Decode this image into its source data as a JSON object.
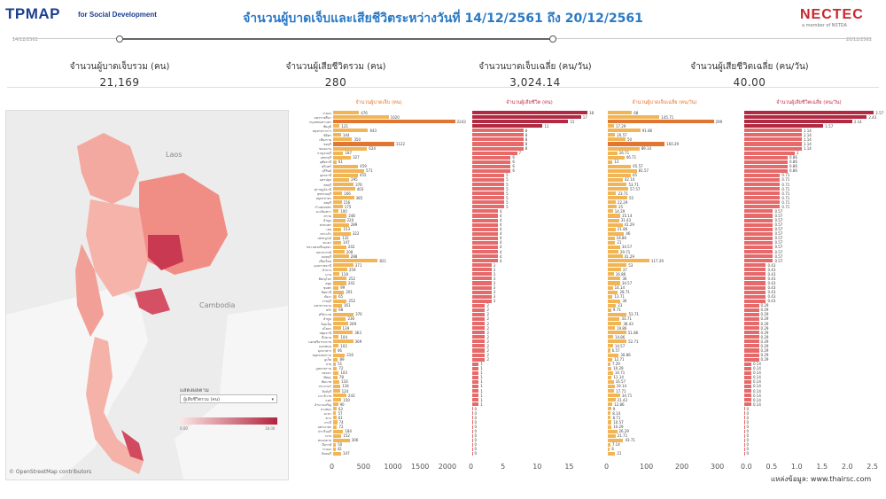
{
  "header": {
    "logo_text": "TPMAP",
    "logo_sub": "for Social Development",
    "title": "จำนวนผู้บาดเจ็บและเสียชีวิตระหว่างวันที่ 14/12/2561 ถึง 20/12/2561",
    "partner": "NECTEC",
    "partner_sub": "a member of NSTDA"
  },
  "date_slider": {
    "start_label": "14/12/2561",
    "end_label": "20/12/2561",
    "range_start": 0.25,
    "range_end": 0.66
  },
  "kpis": [
    {
      "label": "จำนวนผู้บาดเจ็บรวม (คน)",
      "value": "21,169"
    },
    {
      "label": "จำนวนผู้เสียชีวิตรวม (คน)",
      "value": "280"
    },
    {
      "label": "จำนวนบาดเจ็บเฉลี่ย (คน/วัน)",
      "value": "3,024.14"
    },
    {
      "label": "จำนวนผู้เสียชีวิตเฉลี่ย (คน/วัน)",
      "value": "40.00"
    }
  ],
  "map": {
    "labels": {
      "laos": "Laos",
      "cambodia": "Cambodia"
    },
    "attribution": "© OpenStreetMap contributors",
    "legend_title": "แสดงผลตาม",
    "legend_select": "ผู้เสียชีวิตรวม (คน)",
    "legend_min": "0.00",
    "legend_max": "18.00"
  },
  "colors": {
    "orange_bar": "#f2b555",
    "orange_dark": "#e0762f",
    "red_bar": "#e66a6a",
    "red_dark": "#b22a42"
  },
  "panels": [
    {
      "title": "จำนวนผู้บาดเจ็บ (คน)",
      "axis": [
        "0",
        "500",
        "1000",
        "1500",
        "2000"
      ]
    },
    {
      "title": "จำนวนผู้เสียชีวิต (คน)",
      "axis": [
        "0",
        "5",
        "10",
        "15"
      ]
    },
    {
      "title": "จำนวนผู้บาดเจ็บเฉลี่ย (คน/วัน)",
      "axis": [
        "0",
        "100",
        "200",
        "300"
      ]
    },
    {
      "title": "จำนวนผู้เสียชีวิตเฉลี่ย (คน/วัน)",
      "axis": [
        "0.0",
        "0.5",
        "1.0",
        "1.5",
        "2.0",
        "2.5"
      ]
    }
  ],
  "chart_data": {
    "type": "bar",
    "title": "Injuries and deaths by province",
    "series": [
      {
        "name": "จำนวนผู้บาดเจ็บ (คน)",
        "max": 2200,
        "values": [
          476,
          1020,
          2243,
          121,
          643,
          144,
          350,
          1122,
          624,
          187,
          327,
          61,
          459,
          571,
          455,
          295,
          376,
          403,
          166,
          385,
          156,
          175,
          100,
          248,
          220,
          289,
          153,
          322,
          132,
          147,
          242,
          208,
          288,
          821,
          371,
          259,
          118,
          252,
          242,
          99,
          201,
          65,
          252,
          161,
          68,
          376,
          236,
          269,
          139,
          363,
          104,
          369,
          102,
          46,
          216,
          89,
          51,
          72,
          103,
          78,
          116,
          134,
          124,
          243,
          150,
          90,
          63,
          57,
          61,
          74,
          72,
          184,
          152,
          306,
          50,
          42,
          147
        ]
      },
      {
        "name": "จำนวนผู้เสียชีวิต (คน)",
        "max": 18,
        "values": [
          18,
          17,
          15,
          11,
          8,
          8,
          8,
          8,
          8,
          7,
          6,
          6,
          6,
          6,
          5,
          5,
          5,
          5,
          5,
          5,
          5,
          5,
          4,
          4,
          4,
          4,
          4,
          4,
          4,
          4,
          4,
          4,
          4,
          4,
          3,
          3,
          3,
          3,
          3,
          3,
          3,
          3,
          3,
          2,
          2,
          2,
          2,
          2,
          2,
          2,
          2,
          2,
          2,
          2,
          2,
          2,
          1,
          1,
          1,
          1,
          1,
          1,
          1,
          1,
          1,
          1,
          0,
          0,
          0,
          0,
          0,
          0,
          0,
          0,
          0,
          0,
          0
        ]
      },
      {
        "name": "จำนวนผู้บาดเจ็บเฉลี่ย (คน/วัน)",
        "max": 320,
        "values": [
          68,
          145.71,
          299,
          17.29,
          91.86,
          20.57,
          50,
          160.29,
          89.14,
          26.71,
          46.71,
          13,
          65.57,
          81.57,
          65,
          42.14,
          53.71,
          57.57,
          23.71,
          55,
          22.29,
          25,
          14.29,
          35.14,
          31.43,
          41.29,
          21.86,
          46,
          18.86,
          21,
          34.57,
          29.71,
          41.29,
          117.29,
          53,
          37,
          16.86,
          36,
          34.57,
          14.14,
          28.71,
          13.71,
          36,
          23,
          9.71,
          53.71,
          33.71,
          38.43,
          19.86,
          51.86,
          14.86,
          52.71,
          14.57,
          6.57,
          30.86,
          12.71,
          7.29,
          10.29,
          14.71,
          11.14,
          16.57,
          19.14,
          17.71,
          34.71,
          21.43,
          12.86,
          9,
          8.14,
          8.71,
          10.57,
          10.29,
          26.29,
          21.71,
          43.71,
          7.14,
          6,
          21
        ]
      },
      {
        "name": "จำนวนผู้เสียชีวิตเฉลี่ย (คน/วัน)",
        "max": 2.6,
        "values": [
          2.57,
          2.43,
          2.14,
          1.57,
          1.14,
          1.14,
          1.14,
          1.14,
          1.14,
          1,
          0.86,
          0.86,
          0.86,
          0.86,
          0.71,
          0.71,
          0.71,
          0.71,
          0.71,
          0.71,
          0.71,
          0.71,
          0.57,
          0.57,
          0.57,
          0.57,
          0.57,
          0.57,
          0.57,
          0.57,
          0.57,
          0.57,
          0.57,
          0.57,
          0.43,
          0.43,
          0.43,
          0.43,
          0.43,
          0.43,
          0.43,
          0.43,
          0.43,
          0.29,
          0.29,
          0.29,
          0.29,
          0.29,
          0.29,
          0.29,
          0.29,
          0.29,
          0.29,
          0.29,
          0.29,
          0.29,
          0.14,
          0.14,
          0.14,
          0.14,
          0.14,
          0.14,
          0.14,
          0.14,
          0.14,
          0.14,
          0,
          0,
          0,
          0,
          0,
          0,
          0,
          0,
          0,
          0,
          0
        ]
      }
    ],
    "provinces": [
      "ระยอง",
      "นครราชสีมา",
      "กรุงเทพมหานคร",
      "ชัยภูมิ",
      "สมุทรปราการ",
      "พิจิตร",
      "เชียงราย",
      "ชลบุรี",
      "ขอนแก่น",
      "กาญจนบุรี",
      "เพชรบุรี",
      "อุทัยธานี",
      "สุรินทร์",
      "บุรีรัมย์",
      "อุดรธานี",
      "นครปฐม",
      "ลพบุรี",
      "สุราษฎร์ธานี",
      "สุพรรณบุรี",
      "สมุทรสาคร",
      "ลพบุรี",
      "กำแพงเพชร",
      "ฉะเชิงเทรา",
      "ตราด",
      "ลำพูน",
      "สกลนคร",
      "เลย",
      "สระแก้ว",
      "เพชรบูรณ์",
      "พะเยา",
      "พระนครศรีอยุธยา",
      "นครสวรรค์",
      "นนทบุรี",
      "เชียงใหม่",
      "อุบลราชธานี",
      "ลำปาง",
      "นาน",
      "พิษณุโลก",
      "สตูล",
      "ชุมพร",
      "ปัตตานี",
      "พังงา",
      "ราชบุรี",
      "มหาสารคาม",
      "ตรัง",
      "ศรีสะเกษ",
      "ลำพูน",
      "ร้อยเอ็ด",
      "ยโสธร",
      "ปทุมธานี",
      "ยี่ปลาย",
      "นครศรีธรรมราช",
      "นครพนม",
      "มุกดาหาร",
      "สมุทรสงคราม",
      "ภูเก็ต",
      "ปาย",
      "ภูหลาพราม",
      "สงขลา",
      "พัทลุง",
      "ชัยนาท",
      "ประจวบฯ",
      "สิงห์บุรี",
      "นราธิวาส",
      "แพร่",
      "อำนาจเจริญ",
      "อ่างทอง",
      "ยะลา",
      "ตาก",
      "กระบี่",
      "นครนายก",
      "ปราจีนบุรี",
      "นาน",
      "หนองคาย",
      "บึงกาฬ",
      "ระนอง",
      "จันทบุรี"
    ]
  },
  "axis_ticks": {
    "p1": [
      "0",
      "500",
      "1000",
      "1500",
      "2000"
    ],
    "p2": [
      "0",
      "5",
      "10",
      "15"
    ],
    "p3": [
      "0",
      "100",
      "200",
      "300"
    ],
    "p4": [
      "0.0",
      "0.5",
      "1.0",
      "1.5",
      "2.0",
      "2.5"
    ]
  },
  "source": "แหล่งข้อมูล: www.thairsc.com"
}
